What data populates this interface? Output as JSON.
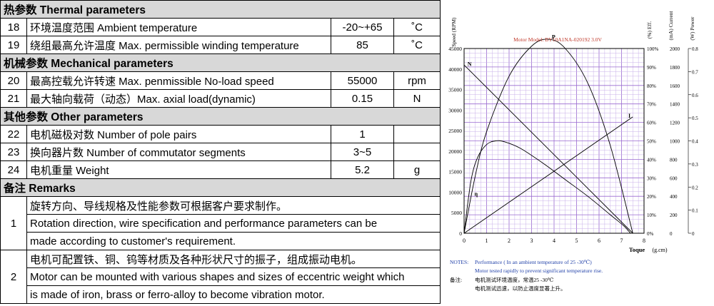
{
  "spec": {
    "sections": {
      "thermal": "热参数  Thermal parameters",
      "mechanical": "机械参数 Mechanical parameters",
      "other": "其他参数  Other parameters",
      "remarks": "备注 Remarks"
    },
    "thermal_rows": [
      {
        "no": "18",
        "name": "环境温度范围  Ambient temperature",
        "value": "-20~+65",
        "unit": "˚C"
      },
      {
        "no": "19",
        "name": "绕组最高允许温度  Max. permissible winding temperature",
        "value": "85",
        "unit": "˚C"
      }
    ],
    "mechanical_rows": [
      {
        "no": "20",
        "name": "最高控载允许转速 Max. penmissible No-load speed",
        "value": "55000",
        "unit": "rpm"
      },
      {
        "no": "21",
        "name": "最大轴向载荷（动态）Max. axial load(dynamic)",
        "value": "0.15",
        "unit": "N"
      }
    ],
    "other_rows": [
      {
        "no": "22",
        "name": "电机磁极对数  Number of pole pairs",
        "value": "1",
        "unit": ""
      },
      {
        "no": "23",
        "name": "换向器片数  Number of commutator segments",
        "value": "3~5",
        "unit": ""
      },
      {
        "no": "24",
        "name": "电机重量 Weight",
        "value": "5.2",
        "unit": "g"
      }
    ],
    "remarks": [
      {
        "no": "1",
        "lines": [
          "旋转方向、导线规格及性能参数可根据客户要求制作。",
          "Rotation direction, wire specification and performance parameters can be",
          "made according to customer's requirement."
        ]
      },
      {
        "no": "2",
        "lines": [
          "电机可配置铁、铜、钨等材质及各种形状尺寸的振子，组成振动电机。",
          "Motor can be mounted with various shapes and sizes of eccentric weight which",
          "is made of iron, brass or ferro-alloy to become vibration motor."
        ]
      }
    ]
  },
  "chart_data": {
    "type": "line",
    "title": "Motor Model: BY10A1NA-020192  3.0V",
    "xlabel": "Toque",
    "xunit": "(g.cm)",
    "xlim": [
      0,
      8
    ],
    "x_ticks": [
      "0",
      "1",
      "2",
      "3",
      "4",
      "5",
      "6",
      "7",
      "8"
    ],
    "axis_headers": {
      "speed": "Speed (RPM)",
      "eff": "(%) Eff.",
      "current": "(mA) Current",
      "power": "(W) Power"
    },
    "y_speed_ticks": [
      "0",
      "5000",
      "10000",
      "15000",
      "20000",
      "25000",
      "30000",
      "35000",
      "40000",
      "45000"
    ],
    "y_eff_ticks": [
      "0%",
      "10%",
      "20%",
      "30%",
      "40%",
      "50%",
      "60%",
      "70%",
      "80%",
      "90%",
      "100%"
    ],
    "y_current_ticks": [
      "0",
      "200",
      "400",
      "600",
      "800",
      "1000",
      "1200",
      "1400",
      "1600",
      "1800",
      "2000"
    ],
    "y_power_ticks": [
      "0",
      "0.1",
      "0.2",
      "0.3",
      "0.4",
      "0.5",
      "0.6",
      "0.7",
      "0.8"
    ],
    "series": [
      {
        "name": "N",
        "kind": "line",
        "x": [
          0,
          7.5
        ],
        "y": [
          41000,
          0
        ],
        "axis": "speed",
        "label_at": 0.15
      },
      {
        "name": "I",
        "kind": "line",
        "x": [
          0,
          7.5
        ],
        "y": [
          0,
          1260
        ],
        "axis": "current",
        "label_at": 7.3
      },
      {
        "name": "η",
        "kind": "curve",
        "x": [
          0,
          0.3,
          0.6,
          1.0,
          1.4,
          1.8,
          2.5,
          3.5,
          4.5,
          5.5,
          6.5,
          7.1,
          7.4
        ],
        "y": [
          0,
          28,
          41,
          48,
          50,
          49.5,
          46,
          38,
          29,
          20,
          10,
          4,
          0
        ],
        "axis": "eff"
      },
      {
        "name": "P",
        "kind": "curve",
        "x": [
          0,
          0.5,
          1.0,
          2.0,
          3.0,
          3.75,
          4.5,
          5.5,
          6.5,
          7.5
        ],
        "y": [
          0,
          0.25,
          0.44,
          0.68,
          0.81,
          0.84,
          0.8,
          0.65,
          0.38,
          0
        ],
        "axis": "power",
        "label_at": 3.9
      }
    ],
    "notes": [
      {
        "label": "NOTES:",
        "text": "Performance ( In an ambient temperature of 25 -30℃)"
      },
      {
        "label": "",
        "text": "Motor tested rapidly to prevent significant temperature rise."
      },
      {
        "label": "备注:",
        "text": "电机测试环境温度，常温25 -30℃"
      },
      {
        "label": "",
        "text": "电机测试迅速，以防止温度显著上升。"
      }
    ]
  }
}
